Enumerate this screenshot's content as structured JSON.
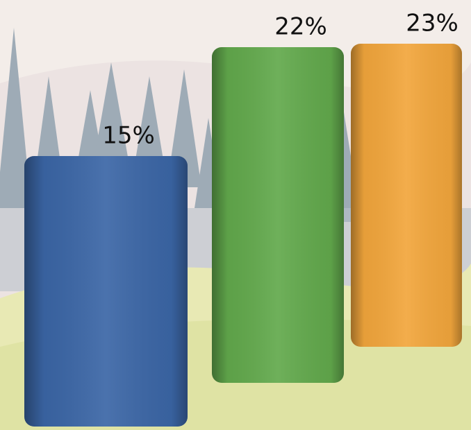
{
  "chart_data": {
    "type": "bar",
    "categories": [
      null,
      null,
      null
    ],
    "values": [
      15,
      22,
      23
    ],
    "value_labels": [
      "15%",
      "22%",
      "23%"
    ],
    "colors": [
      "#3b66a6",
      "#62a94c",
      "#f2a63c"
    ]
  }
}
